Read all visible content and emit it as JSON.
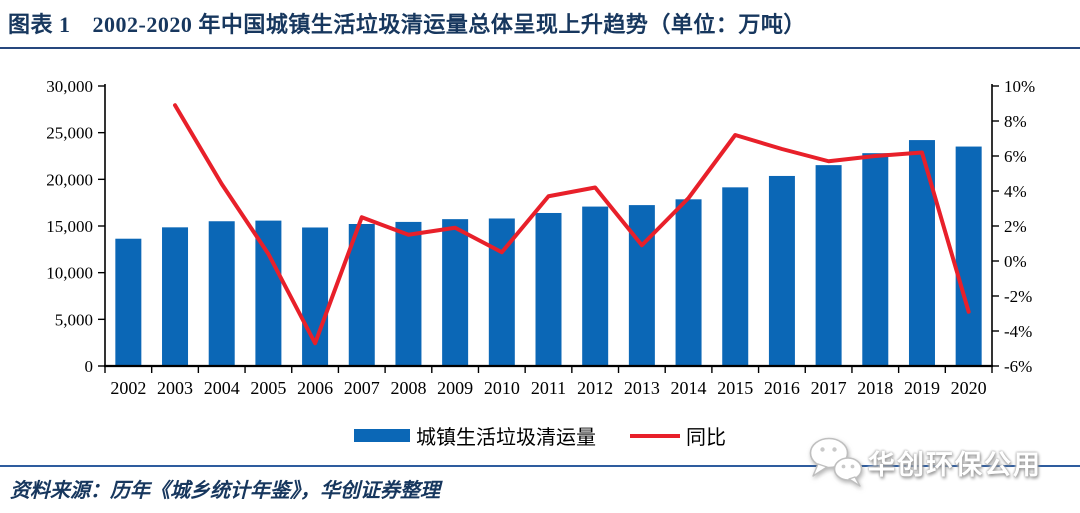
{
  "page": {
    "title_label": "图表 1",
    "title_text": "2002-2020 年中国城镇生活垃圾清运量总体呈现上升趋势（单位：万吨）",
    "source_note": "资料来源：历年《城乡统计年鉴》，华创证券整理",
    "watermark_text": "华创环保公用",
    "watermark_icon": "wechat-icon"
  },
  "colors": {
    "bar": "#0B67B6",
    "line": "#E8202A",
    "title": "#17375E",
    "title_rule": "#26477E",
    "footer_rule": "#2E5C9E",
    "axis": "#000000",
    "tick_text": "#000000"
  },
  "legend": [
    {
      "label": "城镇生活垃圾清运量",
      "marker": "bar"
    },
    {
      "label": "同比",
      "marker": "line"
    }
  ],
  "chart_data": {
    "type": "bar",
    "title": "2002-2020 年中国城镇生活垃圾清运量总体呈现上升趋势",
    "unit": "万吨",
    "grid": false,
    "legend_position": "bottom",
    "categories": [
      "2002",
      "2003",
      "2004",
      "2005",
      "2006",
      "2007",
      "2008",
      "2009",
      "2010",
      "2011",
      "2012",
      "2013",
      "2014",
      "2015",
      "2016",
      "2017",
      "2018",
      "2019",
      "2020"
    ],
    "series": [
      {
        "name": "城镇生活垃圾清运量",
        "type": "bar",
        "axis": "left",
        "unit": "万吨",
        "values": [
          13638,
          14857,
          15509,
          15577,
          14841,
          15215,
          15438,
          15734,
          15805,
          16395,
          17081,
          17239,
          17860,
          19142,
          20362,
          21521,
          22802,
          24206,
          23512
        ]
      },
      {
        "name": "同比",
        "type": "line",
        "axis": "right",
        "unit": "%",
        "values": [
          null,
          8.9,
          4.4,
          0.4,
          -4.7,
          2.5,
          1.5,
          1.9,
          0.5,
          3.7,
          4.2,
          0.9,
          3.6,
          7.2,
          6.4,
          5.7,
          6.0,
          6.2,
          -2.9
        ]
      }
    ],
    "left_axis": {
      "min": 0,
      "max": 30000,
      "step": 5000,
      "tick_labels": [
        "0",
        "5,000",
        "10,000",
        "15,000",
        "20,000",
        "25,000",
        "30,000"
      ]
    },
    "right_axis": {
      "min": -6,
      "max": 10,
      "step": 2,
      "tick_labels": [
        "-6%",
        "-4%",
        "-2%",
        "0%",
        "2%",
        "4%",
        "6%",
        "8%",
        "10%"
      ]
    }
  }
}
